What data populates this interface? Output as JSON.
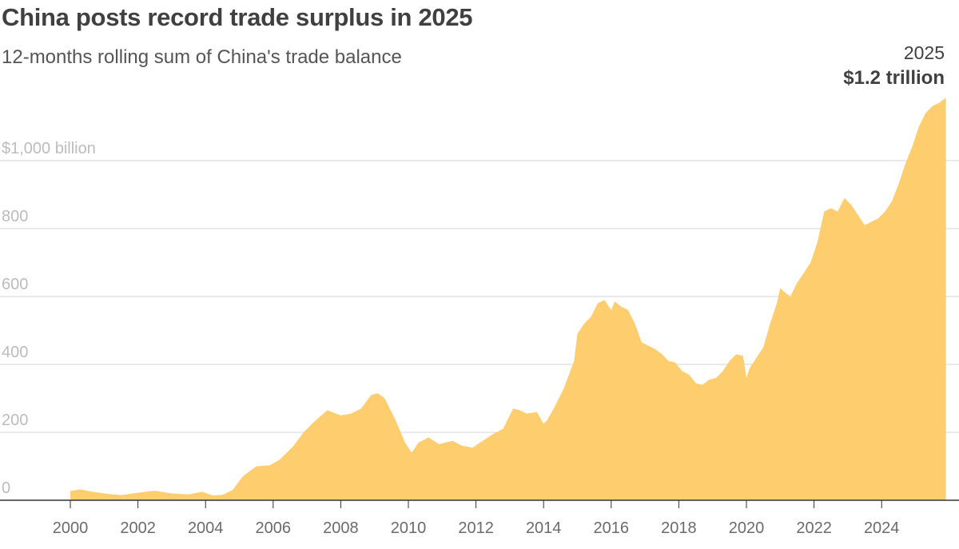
{
  "header": {
    "title": "China posts record trade surplus in 2025",
    "subtitle": "12-months rolling sum of China's trade balance"
  },
  "annotation": {
    "year": "2025",
    "value": "$1.2 trillion"
  },
  "colors": {
    "area": "#fdcd6e",
    "grid": "#d6d6d6",
    "axis": "#333333"
  },
  "chart_data": {
    "type": "area",
    "title": "China posts record trade surplus in 2025",
    "subtitle": "12-months rolling sum of China's trade balance",
    "xlabel": "",
    "ylabel": "",
    "unit": "$ billion",
    "xlim": [
      2000,
      2025.9
    ],
    "ylim": [
      0,
      1200
    ],
    "y_ticks": [
      0,
      200,
      400,
      600,
      800,
      1000
    ],
    "y_tick_labels": [
      "0",
      "200",
      "400",
      "600",
      "800",
      "$1,000 billion"
    ],
    "x_ticks": [
      2000,
      2002,
      2004,
      2006,
      2008,
      2010,
      2012,
      2014,
      2016,
      2018,
      2020,
      2022,
      2024
    ],
    "x_tick_labels": [
      "2000",
      "2002",
      "2004",
      "2006",
      "2008",
      "2010",
      "2012",
      "2014",
      "2016",
      "2018",
      "2020",
      "2022",
      "2024"
    ],
    "grid": true,
    "legend": "none",
    "series": [
      {
        "x": [
          2000.0,
          2000.3,
          2000.6,
          2001.0,
          2001.5,
          2002.0,
          2002.5,
          2003.0,
          2003.5,
          2003.9,
          2004.2,
          2004.5,
          2004.8,
          2005.1,
          2005.5,
          2005.9,
          2006.2,
          2006.6,
          2006.9,
          2007.2,
          2007.6,
          2008.0,
          2008.3,
          2008.6,
          2008.9,
          2009.1,
          2009.3,
          2009.6,
          2009.9,
          2010.1,
          2010.3,
          2010.6,
          2010.9,
          2011.1,
          2011.3,
          2011.6,
          2011.9,
          2012.2,
          2012.5,
          2012.8,
          2013.1,
          2013.3,
          2013.5,
          2013.8,
          2014.0,
          2014.1,
          2014.3,
          2014.6,
          2014.9,
          2015.0,
          2015.2,
          2015.4,
          2015.6,
          2015.8,
          2016.0,
          2016.1,
          2016.3,
          2016.5,
          2016.7,
          2016.9,
          2017.1,
          2017.3,
          2017.5,
          2017.7,
          2017.9,
          2018.1,
          2018.3,
          2018.5,
          2018.7,
          2018.9,
          2019.1,
          2019.3,
          2019.5,
          2019.7,
          2019.9,
          2020.0,
          2020.1,
          2020.3,
          2020.5,
          2020.7,
          2020.9,
          2021.0,
          2021.1,
          2021.3,
          2021.5,
          2021.7,
          2021.9,
          2022.1,
          2022.3,
          2022.5,
          2022.7,
          2022.9,
          2023.1,
          2023.3,
          2023.5,
          2023.7,
          2023.9,
          2024.1,
          2024.3,
          2024.5,
          2024.7,
          2024.9,
          2025.1,
          2025.3,
          2025.5,
          2025.7,
          2025.9
        ],
        "values": [
          27,
          32,
          26,
          20,
          15,
          22,
          28,
          20,
          17,
          25,
          14,
          16,
          30,
          70,
          100,
          103,
          120,
          160,
          200,
          230,
          265,
          250,
          255,
          270,
          310,
          315,
          300,
          240,
          170,
          140,
          170,
          185,
          165,
          170,
          175,
          160,
          155,
          175,
          195,
          210,
          270,
          265,
          255,
          260,
          225,
          235,
          270,
          330,
          410,
          490,
          520,
          540,
          580,
          590,
          560,
          585,
          570,
          560,
          520,
          465,
          455,
          445,
          430,
          410,
          405,
          380,
          370,
          345,
          340,
          355,
          360,
          380,
          410,
          430,
          425,
          360,
          390,
          420,
          450,
          520,
          580,
          625,
          615,
          600,
          640,
          670,
          700,
          760,
          850,
          860,
          850,
          890,
          870,
          840,
          810,
          820,
          830,
          850,
          880,
          930,
          990,
          1040,
          1100,
          1140,
          1160,
          1170,
          1185
        ]
      }
    ]
  }
}
